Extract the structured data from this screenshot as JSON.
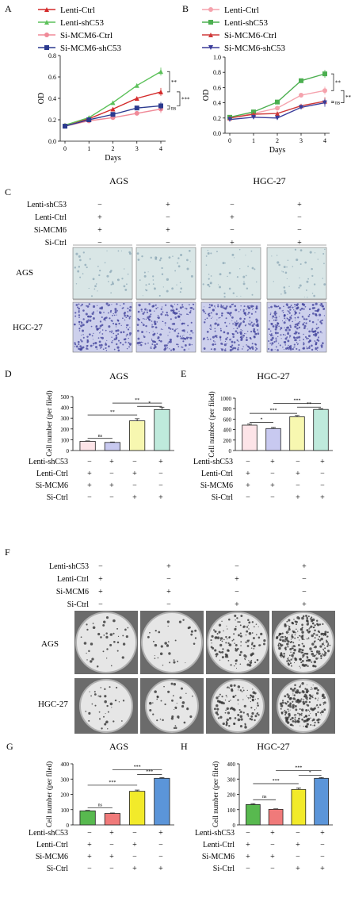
{
  "colors": {
    "red": "#d42a2a",
    "green": "#5cc15a",
    "pink": "#f08a98",
    "navy": "#2b3a8f",
    "lpink": "#f5a3ad",
    "lgreen": "#4caf50",
    "lred": "#cf3a3a",
    "purple": "#3b3d9a",
    "bar1": "#fde4e8",
    "bar2": "#c8c9f0",
    "bar3": "#f7f7b0",
    "bar4": "#bfeadc",
    "gbar1": "#58b94f",
    "gbar2": "#f07a7a",
    "gbar3": "#f2ea2a",
    "gbar4": "#5b95d9"
  },
  "panel_a": {
    "letter": "A",
    "title": "AGS"
  },
  "panel_b": {
    "letter": "B",
    "title": "HGC-27"
  },
  "panel_c": {
    "letter": "C",
    "rows": [
      "AGS",
      "HGC-27"
    ]
  },
  "panel_d": {
    "letter": "D",
    "title": "AGS"
  },
  "panel_e": {
    "letter": "E",
    "title": "HGC-27"
  },
  "panel_f": {
    "letter": "F",
    "rows": [
      "AGS",
      "HGC-27"
    ]
  },
  "panel_g": {
    "letter": "G",
    "title": "AGS"
  },
  "panel_h": {
    "letter": "H",
    "title": "HGC-27"
  },
  "conditions": {
    "labels": [
      "Lenti-shC53",
      "Lenti-Ctrl",
      "Si-MCM6",
      "Si-Ctrl"
    ],
    "signs": [
      [
        "−",
        "+",
        "−",
        "+"
      ],
      [
        "+",
        "−",
        "+",
        "−"
      ],
      [
        "+",
        "+",
        "−",
        "−"
      ],
      [
        "−",
        "−",
        "+",
        "+"
      ]
    ]
  },
  "chart_data": [
    {
      "id": "A",
      "type": "line",
      "title": "AGS",
      "xlabel": "Days",
      "ylabel": "OD",
      "x": [
        0,
        1,
        2,
        3,
        4
      ],
      "ylim": [
        0,
        0.8
      ],
      "yticks": [
        0.0,
        0.2,
        0.4,
        0.6,
        0.8
      ],
      "series": [
        {
          "name": "Lenti-Ctrl",
          "color": "#d42a2a",
          "marker": "tri",
          "values": [
            0.15,
            0.21,
            0.3,
            0.4,
            0.46
          ]
        },
        {
          "name": "Lenti-shC53",
          "color": "#5cc15a",
          "marker": "tri",
          "values": [
            0.15,
            0.22,
            0.36,
            0.52,
            0.65
          ]
        },
        {
          "name": "Si-MCM6-Ctrl",
          "color": "#f08a98",
          "marker": "circle",
          "values": [
            0.14,
            0.19,
            0.22,
            0.26,
            0.3
          ]
        },
        {
          "name": "Si-MCM6-shC53",
          "color": "#2b3a8f",
          "marker": "square",
          "values": [
            0.14,
            0.2,
            0.25,
            0.31,
            0.33
          ]
        }
      ],
      "sig": [
        "**",
        "ns",
        "***"
      ]
    },
    {
      "id": "B",
      "type": "line",
      "title": "HGC-27",
      "xlabel": "Days",
      "ylabel": "OD",
      "x": [
        0,
        1,
        2,
        3,
        4
      ],
      "ylim": [
        0,
        1.0
      ],
      "yticks": [
        0.0,
        0.2,
        0.4,
        0.6,
        0.8,
        1.0
      ],
      "series": [
        {
          "name": "Lenti-Ctrl",
          "color": "#f5a3ad",
          "marker": "circle",
          "values": [
            0.2,
            0.26,
            0.33,
            0.5,
            0.56
          ]
        },
        {
          "name": "Lenti-shC53",
          "color": "#4caf50",
          "marker": "square",
          "values": [
            0.21,
            0.28,
            0.41,
            0.69,
            0.78
          ]
        },
        {
          "name": "Si-MCM6-Ctrl",
          "color": "#cf3a3a",
          "marker": "tri",
          "values": [
            0.2,
            0.25,
            0.26,
            0.36,
            0.42
          ]
        },
        {
          "name": "Si-MCM6-shC53",
          "color": "#3b3d9a",
          "marker": "tridown",
          "values": [
            0.18,
            0.21,
            0.2,
            0.34,
            0.4
          ]
        }
      ],
      "sig": [
        "**",
        "ns",
        "***"
      ]
    },
    {
      "id": "D",
      "type": "bar",
      "title": "AGS",
      "ylabel": "Cell number (per filed)",
      "ylim": [
        0,
        500
      ],
      "yticks": [
        0,
        100,
        200,
        300,
        400,
        500
      ],
      "values": [
        85,
        75,
        275,
        380
      ],
      "errors": [
        4,
        4,
        20,
        22
      ],
      "colors": [
        "#fde4e8",
        "#c8c9f0",
        "#f7f7b0",
        "#bfeadc"
      ],
      "brackets": [
        {
          "from": 0,
          "to": 1,
          "label": "ns",
          "y": 112
        },
        {
          "from": 0,
          "to": 2,
          "label": "**",
          "y": 330
        },
        {
          "from": 2,
          "to": 3,
          "label": "*",
          "y": 410
        },
        {
          "from": 1,
          "to": 3,
          "label": "**",
          "y": 440
        }
      ]
    },
    {
      "id": "E",
      "type": "bar",
      "title": "HGC-27",
      "ylabel": "Cell number (per filed)",
      "ylim": [
        0,
        1000
      ],
      "yticks": [
        0,
        200,
        400,
        600,
        800,
        1000
      ],
      "values": [
        485,
        420,
        645,
        785
      ],
      "errors": [
        20,
        20,
        25,
        15
      ],
      "colors": [
        "#fde4e8",
        "#c8c9f0",
        "#f7f7b0",
        "#bfeadc"
      ],
      "brackets": [
        {
          "from": 0,
          "to": 1,
          "label": "*",
          "y": 540
        },
        {
          "from": 0,
          "to": 2,
          "label": "***",
          "y": 710
        },
        {
          "from": 2,
          "to": 3,
          "label": "**",
          "y": 830
        },
        {
          "from": 1,
          "to": 3,
          "label": "***",
          "y": 900
        }
      ]
    },
    {
      "id": "G",
      "type": "bar",
      "title": "AGS",
      "ylabel": "Cell number (per filed)",
      "ylim": [
        0,
        400
      ],
      "yticks": [
        0,
        100,
        200,
        300,
        400
      ],
      "values": [
        92,
        75,
        220,
        305
      ],
      "errors": [
        3,
        3,
        8,
        5
      ],
      "colors": [
        "#58b94f",
        "#f07a7a",
        "#f2ea2a",
        "#5b95d9"
      ],
      "brackets": [
        {
          "from": 0,
          "to": 1,
          "label": "ns",
          "y": 112
        },
        {
          "from": 0,
          "to": 2,
          "label": "***",
          "y": 260
        },
        {
          "from": 2,
          "to": 3,
          "label": "***",
          "y": 330
        },
        {
          "from": 1,
          "to": 3,
          "label": "***",
          "y": 362
        }
      ]
    },
    {
      "id": "H",
      "type": "bar",
      "title": "HGC-27",
      "ylabel": "Cell number (per filed)",
      "ylim": [
        0,
        400
      ],
      "yticks": [
        0,
        100,
        200,
        300,
        400
      ],
      "values": [
        133,
        102,
        232,
        305
      ],
      "errors": [
        6,
        3,
        10,
        5
      ],
      "colors": [
        "#58b94f",
        "#f07a7a",
        "#f2ea2a",
        "#5b95d9"
      ],
      "brackets": [
        {
          "from": 0,
          "to": 1,
          "label": "ns",
          "y": 165
        },
        {
          "from": 0,
          "to": 2,
          "label": "***",
          "y": 270
        },
        {
          "from": 2,
          "to": 3,
          "label": "*",
          "y": 325
        },
        {
          "from": 1,
          "to": 3,
          "label": "***",
          "y": 355
        }
      ]
    }
  ]
}
